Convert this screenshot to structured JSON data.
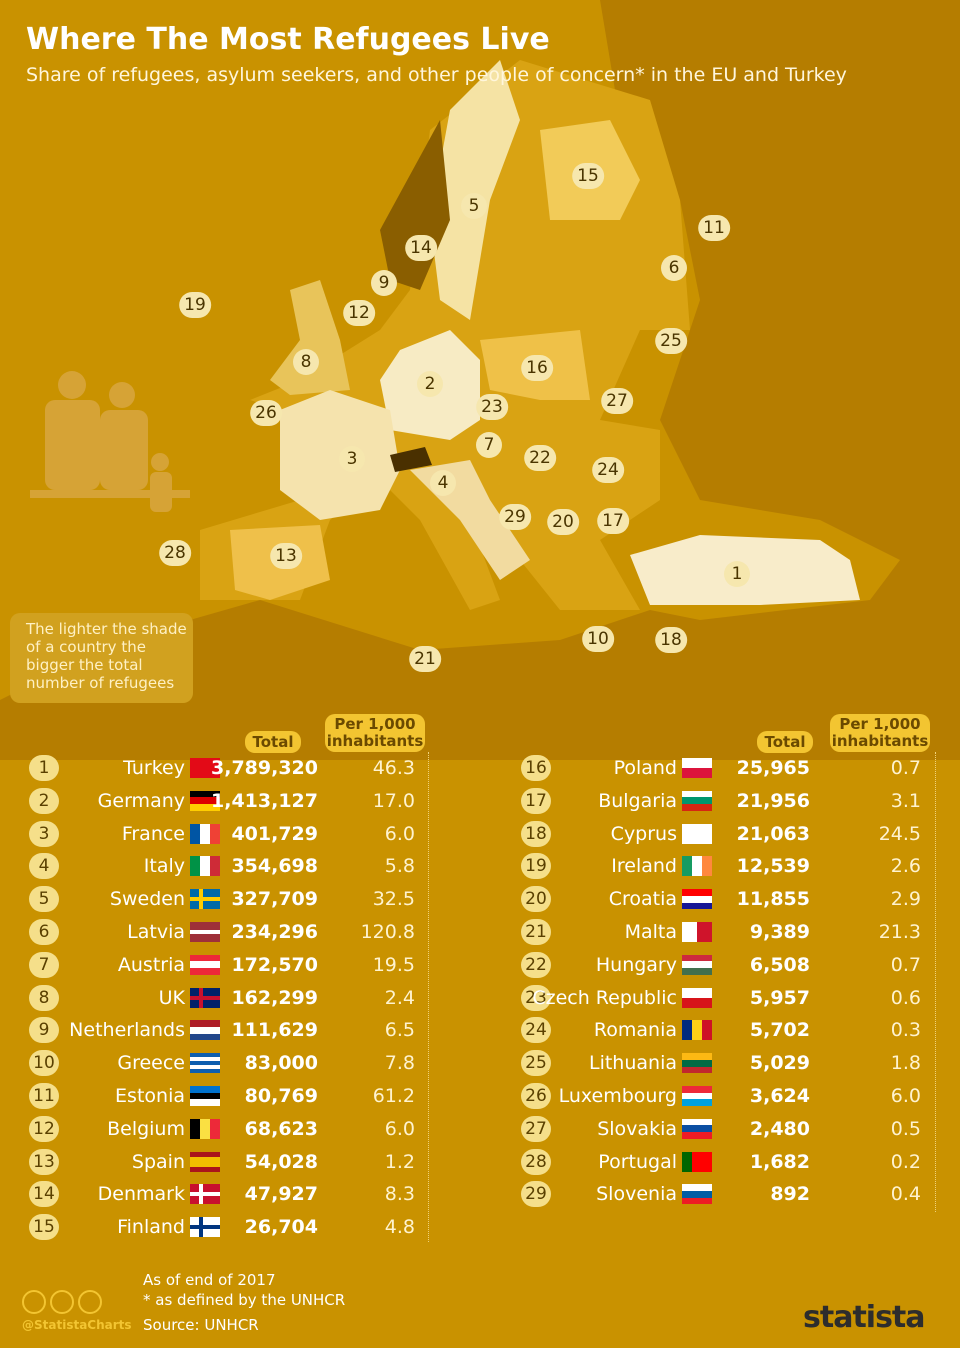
{
  "header": {
    "title": "Where The Most Refugees Live",
    "subtitle": "Share of refugees, asylum seekers,  and other people of concern* in the EU and Turkey"
  },
  "map": {
    "badges": [
      "15",
      "5",
      "11",
      "14",
      "6",
      "9",
      "19",
      "12",
      "25",
      "8",
      "16",
      "2",
      "23",
      "27",
      "26",
      "7",
      "3",
      "22",
      "24",
      "4",
      "29",
      "20",
      "17",
      "28",
      "13",
      "1",
      "10",
      "18",
      "21"
    ],
    "note": "The lighter the shade of a country the bigger the total number of refugees"
  },
  "table": {
    "columns": [
      "Total",
      "Per 1,000 inhabitants"
    ],
    "rows": [
      [
        "1",
        "Turkey",
        "3,789,320",
        "46.3"
      ],
      [
        "2",
        "Germany",
        "1,413,127",
        "17.0"
      ],
      [
        "3",
        "France",
        "401,729",
        "6.0"
      ],
      [
        "4",
        "Italy",
        "354,698",
        "5.8"
      ],
      [
        "5",
        "Sweden",
        "327,709",
        "32.5"
      ],
      [
        "6",
        "Latvia",
        "234,296",
        "120.8"
      ],
      [
        "7",
        "Austria",
        "172,570",
        "19.5"
      ],
      [
        "8",
        "UK",
        "162,299",
        "2.4"
      ],
      [
        "9",
        "Netherlands",
        "111,629",
        "6.5"
      ],
      [
        "10",
        "Greece",
        "83,000",
        "7.8"
      ],
      [
        "11",
        "Estonia",
        "80,769",
        "61.2"
      ],
      [
        "12",
        "Belgium",
        "68,623",
        "6.0"
      ],
      [
        "13",
        "Spain",
        "54,028",
        "1.2"
      ],
      [
        "14",
        "Denmark",
        "47,927",
        "8.3"
      ],
      [
        "15",
        "Finland",
        "26,704",
        "4.8"
      ],
      [
        "16",
        "Poland",
        "25,965",
        "0.7"
      ],
      [
        "17",
        "Bulgaria",
        "21,956",
        "3.1"
      ],
      [
        "18",
        "Cyprus",
        "21,063",
        "24.5"
      ],
      [
        "19",
        "Ireland",
        "12,539",
        "2.6"
      ],
      [
        "20",
        "Croatia",
        "11,855",
        "2.9"
      ],
      [
        "21",
        "Malta",
        "9,389",
        "21.3"
      ],
      [
        "22",
        "Hungary",
        "6,508",
        "0.7"
      ],
      [
        "23",
        "Czech Republic",
        "5,957",
        "0.6"
      ],
      [
        "24",
        "Romania",
        "5,702",
        "0.3"
      ],
      [
        "25",
        "Lithuania",
        "5,029",
        "1.8"
      ],
      [
        "26",
        "Luxembourg",
        "3,624",
        "6.0"
      ],
      [
        "27",
        "Slovakia",
        "2,480",
        "0.5"
      ],
      [
        "28",
        "Portugal",
        "1,682",
        "0.2"
      ],
      [
        "29",
        "Slovenia",
        "892",
        "0.4"
      ]
    ]
  },
  "footer": {
    "notes": [
      "As of end of 2017",
      "* as defined by the UNHCR",
      "Source: UNHCR"
    ],
    "handle": "@StatistaCharts",
    "brand": "statista"
  }
}
